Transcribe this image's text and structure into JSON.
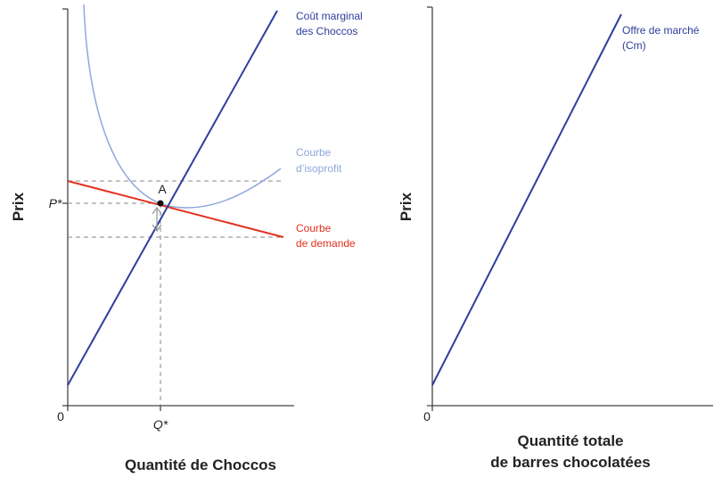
{
  "colors": {
    "marginal_cost": "#2d3e9c",
    "isoprofit": "#8fa6dc",
    "demand": "#e2311d",
    "axis": "#444444",
    "dashed": "#888888"
  },
  "left_panel": {
    "y_axis_label": "Prix",
    "x_axis_label": "Quantité de Choccos",
    "origin": "0",
    "p_star": "P*",
    "q_star": "Q*",
    "point_label": "A",
    "marginal_cost_label": [
      "Coût marginal",
      "des Choccos"
    ],
    "isoprofit_label": [
      "Courbe",
      "d’isoprofit"
    ],
    "demand_label": [
      "Courbe",
      "de demande"
    ]
  },
  "right_panel": {
    "y_axis_label": "Prix",
    "x_axis_label": [
      "Quantité totale",
      "de barres chocolatées"
    ],
    "origin": "0",
    "supply_label": [
      "Offre de marché",
      "(Cm)"
    ]
  }
}
